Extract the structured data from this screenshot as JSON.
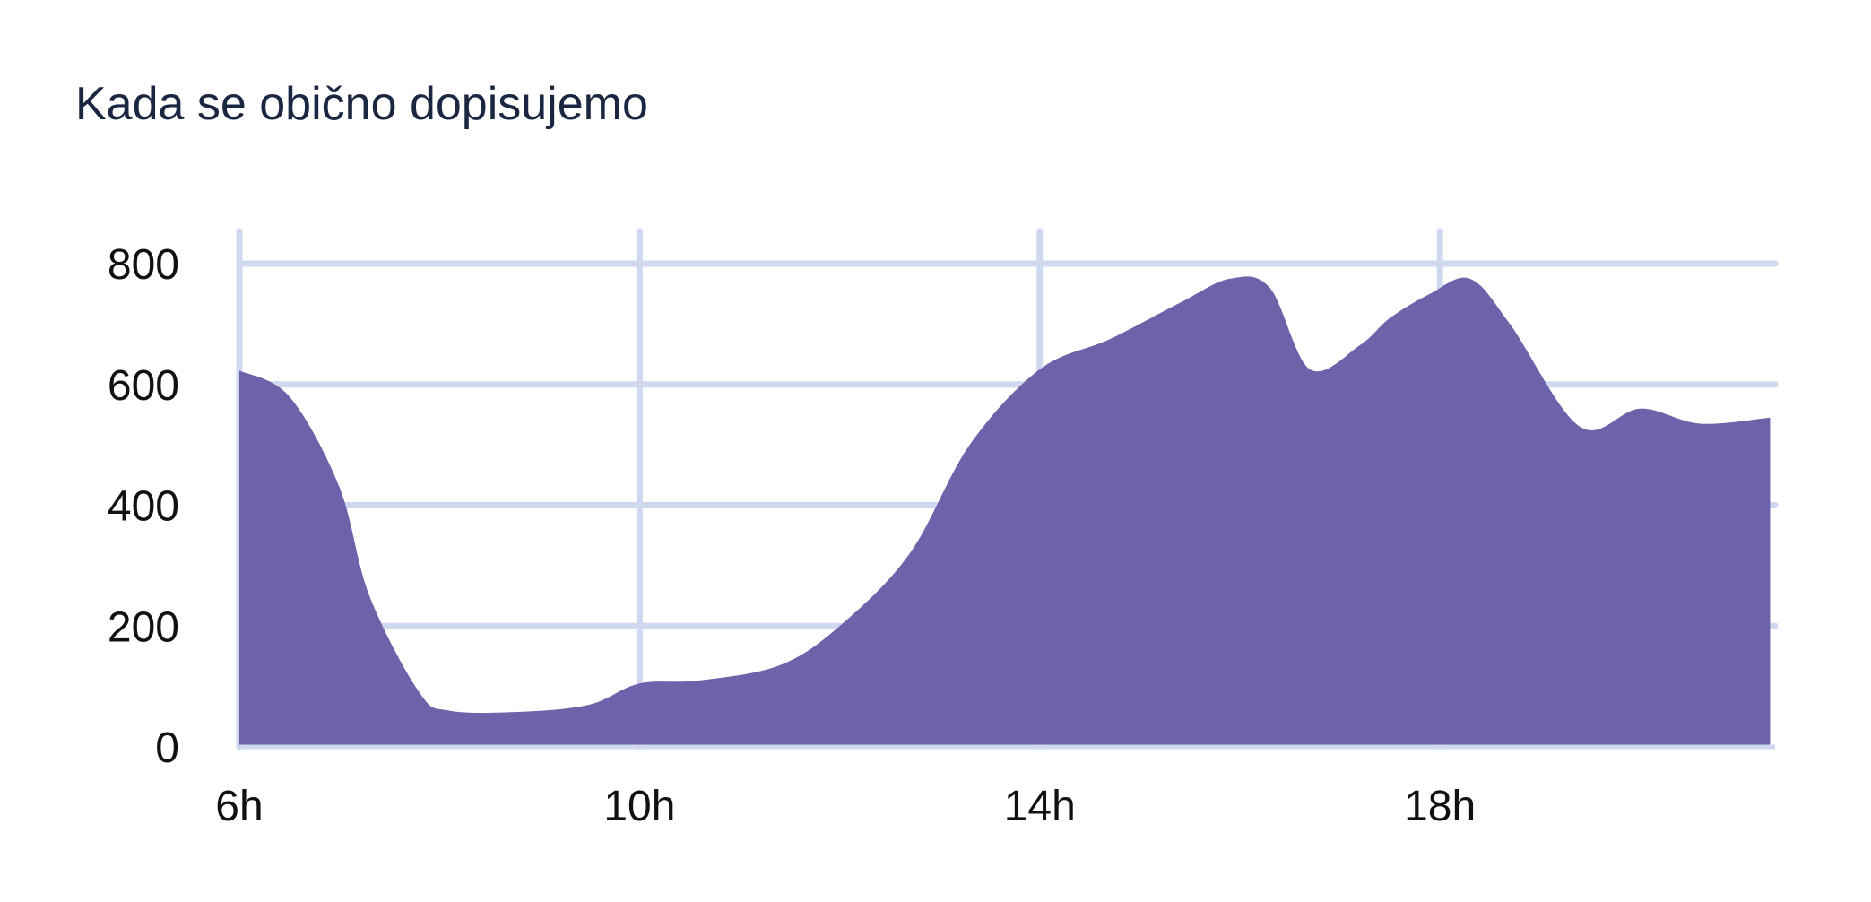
{
  "chart_data": {
    "type": "area",
    "title": "Kada se obično dopisujemo",
    "xlabel": "",
    "ylabel": "",
    "x": [
      6,
      6.5,
      7,
      7.3,
      7.8,
      8.1,
      8.8,
      9.5,
      10,
      10.6,
      11.4,
      12,
      12.7,
      13.3,
      14,
      14.7,
      15.4,
      15.9,
      16.3,
      16.7,
      17.2,
      17.5,
      17.9,
      18.3,
      18.7,
      19.4,
      20,
      20.6,
      21.3
    ],
    "values": [
      623,
      580,
      430,
      250,
      90,
      60,
      58,
      70,
      105,
      110,
      135,
      200,
      320,
      500,
      625,
      675,
      735,
      775,
      760,
      625,
      665,
      710,
      750,
      775,
      700,
      530,
      560,
      535,
      545
    ],
    "xlim": [
      6,
      21.35
    ],
    "ylim": [
      0,
      800
    ],
    "x_ticks": [
      6,
      10,
      14,
      18
    ],
    "x_tick_labels": [
      "6h",
      "10h",
      "14h",
      "18h"
    ],
    "y_ticks": [
      0,
      200,
      400,
      600,
      800
    ],
    "y_tick_labels": [
      "0",
      "200",
      "400",
      "600",
      "800"
    ],
    "grid": true,
    "legend": "none",
    "colors": {
      "area": "#6e62aa",
      "grid": "#cfd8ee",
      "title": "#1b2740",
      "ticks": "#111111"
    }
  }
}
